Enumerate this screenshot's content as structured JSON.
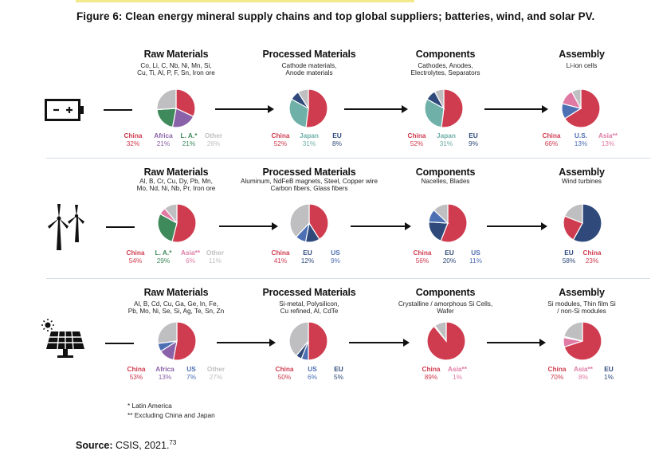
{
  "figure_title": "Figure 6: Clean energy mineral supply chains and top global suppliers; batteries, wind, and solar PV.",
  "colors": {
    "China": "#cf3c4f",
    "Africa": "#8a62a9",
    "L. A.*": "#3f8a5b",
    "Other": "#bfbfc2",
    "Japan": "#6fb0a8",
    "EU": "#2f4a7a",
    "U.S.": "#4d6fb3",
    "US": "#4d6fb3",
    "Asia**": "#e07aa5"
  },
  "icons": [
    "battery-icon",
    "wind-turbine-icon",
    "solar-panel-icon"
  ],
  "rows": [
    {
      "name": "batteries",
      "stages": [
        {
          "title": "Raw Materials",
          "subtitle": [
            "Co, Li, C, Nb, Ni, Mn, Si,",
            "Cu, Ti, Al, P, F, Sn, Iron ore"
          ]
        },
        {
          "title": "Processed Materials",
          "subtitle": [
            "Cathode materials,",
            "Anode materials"
          ]
        },
        {
          "title": "Components",
          "subtitle": [
            "Cathodes, Anodes,",
            "Electrolytes, Separators"
          ]
        },
        {
          "title": "Assembly",
          "subtitle": [
            "Li-ion cells"
          ]
        }
      ]
    },
    {
      "name": "wind",
      "stages": [
        {
          "title": "Raw Materials",
          "subtitle": [
            "Al, B, Cr, Cu, Dy, Pb, Mn,",
            "Mo, Nd, Ni, Nb, Pr, Iron ore"
          ]
        },
        {
          "title": "Processed Materials",
          "subtitle": [
            "Aluminum, NdFeB magnets, Steel, Copper wire",
            "Carbon fibers, Glass fibers"
          ]
        },
        {
          "title": "Components",
          "subtitle": [
            "Nacelles, Blades"
          ]
        },
        {
          "title": "Assembly",
          "subtitle": [
            "Wind turbines"
          ]
        }
      ]
    },
    {
      "name": "solar",
      "stages": [
        {
          "title": "Raw Materials",
          "subtitle": [
            "Al, B, Cd, Cu, Ga, Ge, In, Fe,",
            "Pb, Mo, Ni, Se, Si, Ag, Te, Sn, Zn"
          ]
        },
        {
          "title": "Processed Materials",
          "subtitle": [
            "Si-metal, Polysilicon,",
            "Cu refined, Al, CdTe"
          ]
        },
        {
          "title": "Components",
          "subtitle": [
            "Crystalline / amorphous Si Cells,",
            "Wafer"
          ]
        },
        {
          "title": "Assembly",
          "subtitle": [
            "Si modules, Thin film Si",
            "/ non-Si modules"
          ]
        }
      ]
    }
  ],
  "chart_data": [
    {
      "type": "pie",
      "title": "Batteries - Raw Materials",
      "slices": [
        {
          "label": "China",
          "value": 32,
          "display": "32%"
        },
        {
          "label": "Africa",
          "value": 21,
          "display": "21%"
        },
        {
          "label": "L. A.*",
          "value": 21,
          "display": "21%"
        },
        {
          "label": "Other",
          "value": 26,
          "display": "26%"
        }
      ]
    },
    {
      "type": "pie",
      "title": "Batteries - Processed Materials",
      "slices": [
        {
          "label": "China",
          "value": 52,
          "display": "52%"
        },
        {
          "label": "Japan",
          "value": 31,
          "display": "31%"
        },
        {
          "label": "EU",
          "value": 8,
          "display": "8%"
        },
        {
          "label": "Other",
          "value": 9,
          "display": ""
        }
      ]
    },
    {
      "type": "pie",
      "title": "Batteries - Components",
      "slices": [
        {
          "label": "China",
          "value": 52,
          "display": "52%"
        },
        {
          "label": "Japan",
          "value": 31,
          "display": "31%"
        },
        {
          "label": "EU",
          "value": 9,
          "display": "9%"
        },
        {
          "label": "Other",
          "value": 8,
          "display": ""
        }
      ]
    },
    {
      "type": "pie",
      "title": "Batteries - Assembly",
      "slices": [
        {
          "label": "China",
          "value": 66,
          "display": "66%"
        },
        {
          "label": "U.S.",
          "value": 13,
          "display": "13%"
        },
        {
          "label": "Asia**",
          "value": 13,
          "display": "13%"
        },
        {
          "label": "Other",
          "value": 8,
          "display": ""
        }
      ]
    },
    {
      "type": "pie",
      "title": "Wind - Raw Materials",
      "slices": [
        {
          "label": "China",
          "value": 54,
          "display": "54%"
        },
        {
          "label": "L. A.*",
          "value": 29,
          "display": "29%"
        },
        {
          "label": "Asia**",
          "value": 6,
          "display": "6%"
        },
        {
          "label": "Other",
          "value": 11,
          "display": "11%"
        }
      ]
    },
    {
      "type": "pie",
      "title": "Wind - Processed Materials",
      "slices": [
        {
          "label": "China",
          "value": 41,
          "display": "41%"
        },
        {
          "label": "EU",
          "value": 12,
          "display": "12%"
        },
        {
          "label": "US",
          "value": 9,
          "display": "9%"
        },
        {
          "label": "Other",
          "value": 38,
          "display": ""
        }
      ]
    },
    {
      "type": "pie",
      "title": "Wind - Components",
      "slices": [
        {
          "label": "China",
          "value": 56,
          "display": "56%"
        },
        {
          "label": "EU",
          "value": 20,
          "display": "20%"
        },
        {
          "label": "US",
          "value": 11,
          "display": "11%"
        },
        {
          "label": "Other",
          "value": 13,
          "display": ""
        }
      ]
    },
    {
      "type": "pie",
      "title": "Wind - Assembly",
      "slices": [
        {
          "label": "EU",
          "value": 58,
          "display": "58%"
        },
        {
          "label": "China",
          "value": 23,
          "display": "23%"
        },
        {
          "label": "Other",
          "value": 19,
          "display": ""
        }
      ]
    },
    {
      "type": "pie",
      "title": "Solar PV - Raw Materials",
      "slices": [
        {
          "label": "China",
          "value": 53,
          "display": "53%"
        },
        {
          "label": "Africa",
          "value": 13,
          "display": "13%"
        },
        {
          "label": "US",
          "value": 7,
          "display": "7%"
        },
        {
          "label": "Other",
          "value": 27,
          "display": "27%"
        }
      ]
    },
    {
      "type": "pie",
      "title": "Solar PV - Processed Materials",
      "slices": [
        {
          "label": "China",
          "value": 50,
          "display": "50%"
        },
        {
          "label": "US",
          "value": 6,
          "display": "6%"
        },
        {
          "label": "EU",
          "value": 5,
          "display": "5%"
        },
        {
          "label": "Other",
          "value": 39,
          "display": ""
        }
      ]
    },
    {
      "type": "pie",
      "title": "Solar PV - Components",
      "slices": [
        {
          "label": "China",
          "value": 89,
          "display": "89%"
        },
        {
          "label": "Asia**",
          "value": 1,
          "display": "1%"
        },
        {
          "label": "Other",
          "value": 10,
          "display": ""
        }
      ]
    },
    {
      "type": "pie",
      "title": "Solar PV - Assembly",
      "slices": [
        {
          "label": "China",
          "value": 70,
          "display": "70%"
        },
        {
          "label": "Asia**",
          "value": 8,
          "display": "8%"
        },
        {
          "label": "EU",
          "value": 1,
          "display": "1%"
        },
        {
          "label": "Other",
          "value": 21,
          "display": ""
        }
      ]
    }
  ],
  "notes": [
    "* Latin America",
    "** Excluding China and Japan"
  ],
  "source": {
    "label": "Source:",
    "text": " CSIS, 2021.",
    "ref": "73"
  }
}
